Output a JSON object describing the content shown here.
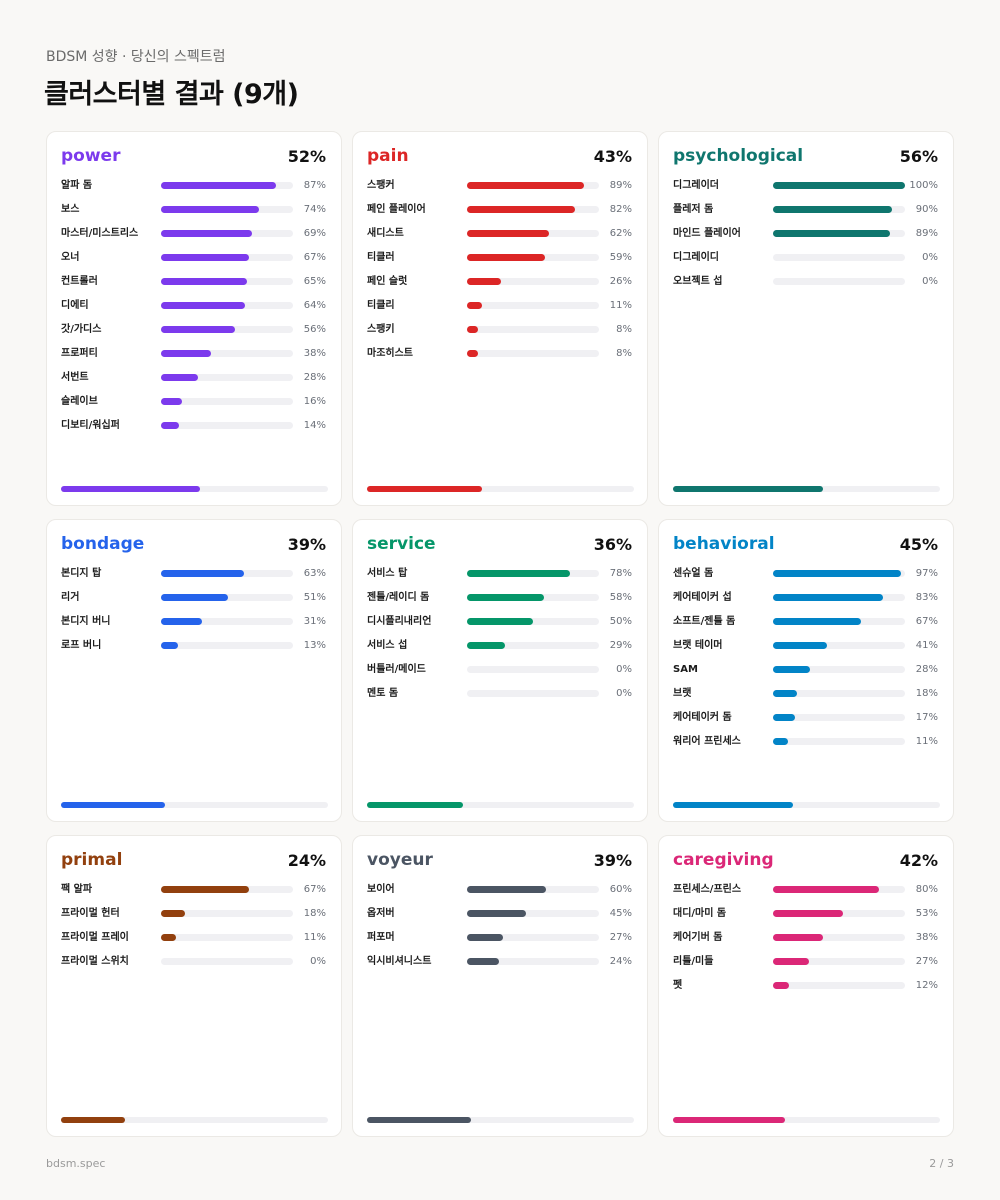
{
  "header": {
    "subtitle": "BDSM 성향 · 당신의 스펙트럼",
    "title": "클러스터별 결과 (9개)"
  },
  "footer": {
    "brand": "bdsm.spec",
    "page": "2 / 3"
  },
  "chart_data": [
    {
      "type": "bar",
      "title": "power",
      "total": "52%",
      "total_value": 52,
      "color": "#7c3aed",
      "categories": [
        "알파 돔",
        "보스",
        "마스터/미스트리스",
        "오너",
        "컨트롤러",
        "디에티",
        "갓/가디스",
        "프로퍼티",
        "서번트",
        "슬레이브",
        "디보티/워십퍼"
      ],
      "values": [
        87,
        74,
        69,
        67,
        65,
        64,
        56,
        38,
        28,
        16,
        14
      ],
      "ylim": [
        0,
        100
      ]
    },
    {
      "type": "bar",
      "title": "pain",
      "total": "43%",
      "total_value": 43,
      "color": "#dc2626",
      "categories": [
        "스팽커",
        "페인 플레이어",
        "새디스트",
        "티클러",
        "페인 슬럿",
        "티클리",
        "스팽키",
        "마조히스트"
      ],
      "values": [
        89,
        82,
        62,
        59,
        26,
        11,
        8,
        8
      ],
      "ylim": [
        0,
        100
      ]
    },
    {
      "type": "bar",
      "title": "psychological",
      "total": "56%",
      "total_value": 56,
      "color": "#0f766e",
      "categories": [
        "디그레이더",
        "플레저 돔",
        "마인드 플레이어",
        "디그레이디",
        "오브젝트 섭"
      ],
      "values": [
        100,
        90,
        89,
        0,
        0
      ],
      "ylim": [
        0,
        100
      ]
    },
    {
      "type": "bar",
      "title": "bondage",
      "total": "39%",
      "total_value": 39,
      "color": "#2563eb",
      "categories": [
        "본디지 탑",
        "리거",
        "본디지 버니",
        "로프 버니"
      ],
      "values": [
        63,
        51,
        31,
        13
      ],
      "ylim": [
        0,
        100
      ]
    },
    {
      "type": "bar",
      "title": "service",
      "total": "36%",
      "total_value": 36,
      "color": "#059669",
      "categories": [
        "서비스 탑",
        "젠틀/레이디 돔",
        "디시플리내리언",
        "서비스 섭",
        "버틀러/메이드",
        "멘토 돔"
      ],
      "values": [
        78,
        58,
        50,
        29,
        0,
        0
      ],
      "ylim": [
        0,
        100
      ]
    },
    {
      "type": "bar",
      "title": "behavioral",
      "total": "45%",
      "total_value": 45,
      "color": "#0284c7",
      "categories": [
        "센슈얼 돔",
        "케어테이커 섭",
        "소프트/젠틀 돔",
        "브랫 테이머",
        "SAM",
        "브랫",
        "케어테이커 돔",
        "워리어 프린세스"
      ],
      "values": [
        97,
        83,
        67,
        41,
        28,
        18,
        17,
        11
      ],
      "ylim": [
        0,
        100
      ]
    },
    {
      "type": "bar",
      "title": "primal",
      "total": "24%",
      "total_value": 24,
      "color": "#92400e",
      "categories": [
        "팩 알파",
        "프라이멀 헌터",
        "프라이멀 프레이",
        "프라이멀 스위치"
      ],
      "values": [
        67,
        18,
        11,
        0
      ],
      "ylim": [
        0,
        100
      ]
    },
    {
      "type": "bar",
      "title": "voyeur",
      "total": "39%",
      "total_value": 39,
      "color": "#4b5563",
      "categories": [
        "보이어",
        "옵저버",
        "퍼포머",
        "익시비셔니스트"
      ],
      "values": [
        60,
        45,
        27,
        24
      ],
      "ylim": [
        0,
        100
      ]
    },
    {
      "type": "bar",
      "title": "caregiving",
      "total": "42%",
      "total_value": 42,
      "color": "#db2777",
      "categories": [
        "프린세스/프린스",
        "대디/마미 돔",
        "케어기버 돔",
        "리틀/미들",
        "펫"
      ],
      "values": [
        80,
        53,
        38,
        27,
        12
      ],
      "ylim": [
        0,
        100
      ]
    }
  ]
}
